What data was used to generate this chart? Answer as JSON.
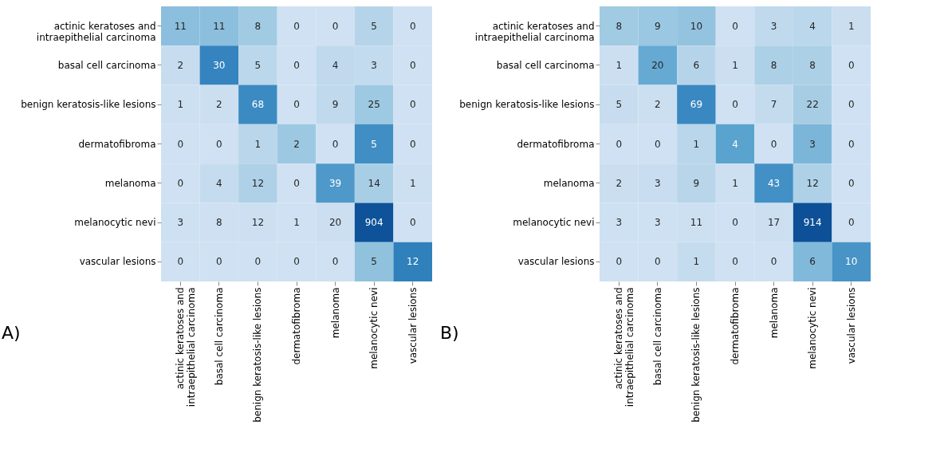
{
  "chart_data": [
    {
      "type": "heatmap",
      "categories": [
        "actinic keratoses and intraepithelial carcinoma",
        "basal cell carcinoma",
        "benign keratosis-like lesions",
        "dermatofibroma",
        "melanoma",
        "melanocytic nevi",
        "vascular lesions"
      ],
      "y_categories": [
        "actinic keratoses and intraepithelial carcinoma",
        "basal cell carcinoma",
        "benign keratosis-like lesions",
        "dermatofibroma",
        "melanoma",
        "melanocytic nevi",
        "vascular lesions"
      ],
      "cells": [
        [
          11,
          11,
          8,
          0,
          0,
          5,
          0
        ],
        [
          2,
          30,
          5,
          0,
          4,
          3,
          0
        ],
        [
          1,
          2,
          68,
          0,
          9,
          25,
          0
        ],
        [
          0,
          0,
          1,
          2,
          0,
          5,
          0
        ],
        [
          0,
          4,
          12,
          0,
          39,
          14,
          1
        ],
        [
          3,
          8,
          12,
          1,
          20,
          904,
          0
        ],
        [
          0,
          0,
          0,
          0,
          0,
          5,
          12
        ]
      ],
      "data_labels": true,
      "annotations": [
        "A)"
      ]
    },
    {
      "type": "heatmap",
      "categories": [
        "actinic keratoses and intraepithelial carcinoma",
        "basal cell carcinoma",
        "benign keratosis-like lesions",
        "dermatofibroma",
        "melanoma",
        "melanocytic nevi",
        "vascular lesions"
      ],
      "y_categories": [
        "actinic keratoses and intraepithelial carcinoma",
        "basal cell carcinoma",
        "benign keratosis-like lesions",
        "dermatofibroma",
        "melanoma",
        "melanocytic nevi",
        "vascular lesions"
      ],
      "cells": [
        [
          8,
          9,
          10,
          0,
          3,
          4,
          1
        ],
        [
          1,
          20,
          6,
          1,
          8,
          8,
          0
        ],
        [
          5,
          2,
          69,
          0,
          7,
          22,
          0
        ],
        [
          0,
          0,
          1,
          4,
          0,
          3,
          0
        ],
        [
          2,
          3,
          9,
          1,
          43,
          12,
          0
        ],
        [
          3,
          3,
          11,
          0,
          17,
          914,
          0
        ],
        [
          0,
          0,
          1,
          0,
          0,
          6,
          10
        ]
      ],
      "data_labels": true,
      "annotations": [
        "B)"
      ]
    }
  ]
}
